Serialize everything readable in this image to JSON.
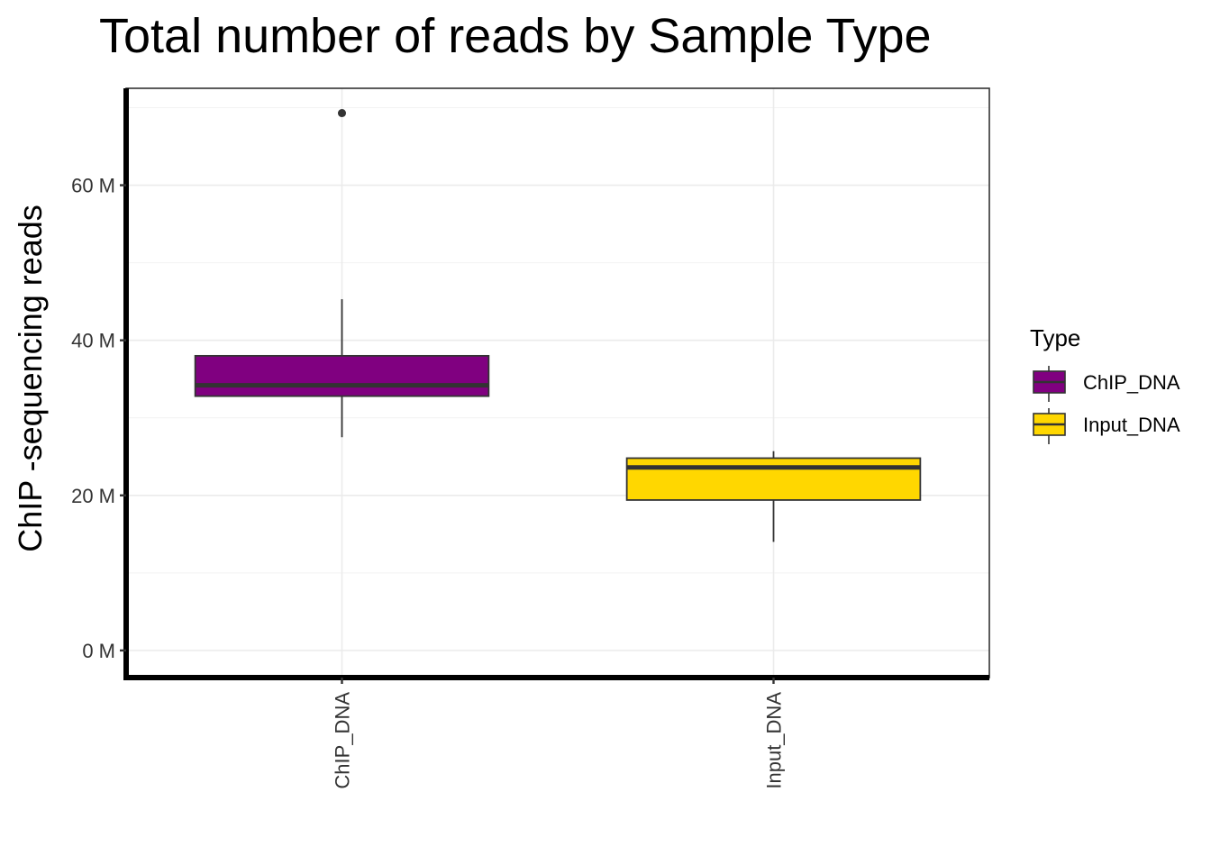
{
  "chart_data": {
    "type": "box",
    "title": "Total number of reads by Sample Type",
    "xlabel": "",
    "ylabel": "ChIP -sequencing reads",
    "ylim": [
      -3.5,
      72.5
    ],
    "y_ticks": [
      0,
      20,
      40,
      60
    ],
    "y_tick_labels": [
      "0 M",
      "20 M",
      "40 M",
      "60 M"
    ],
    "y_minor": [
      10,
      30,
      50,
      70
    ],
    "grid": true,
    "categories": [
      "ChIP_DNA",
      "Input_DNA"
    ],
    "boxes": [
      {
        "category": "ChIP_DNA",
        "whisker_low": 27.5,
        "q1": 32.8,
        "median": 34.2,
        "q3": 38.0,
        "whisker_high": 45.3,
        "outliers": [
          69.3
        ],
        "color": "#800080"
      },
      {
        "category": "Input_DNA",
        "whisker_low": 14.0,
        "q1": 19.4,
        "median": 23.6,
        "q3": 24.8,
        "whisker_high": 25.7,
        "outliers": [],
        "color": "#FFD700"
      }
    ],
    "legend": {
      "title": "Type",
      "position": "right",
      "entries": [
        {
          "label": "ChIP_DNA",
          "color": "#800080"
        },
        {
          "label": "Input_DNA",
          "color": "#FFD700"
        }
      ]
    }
  }
}
